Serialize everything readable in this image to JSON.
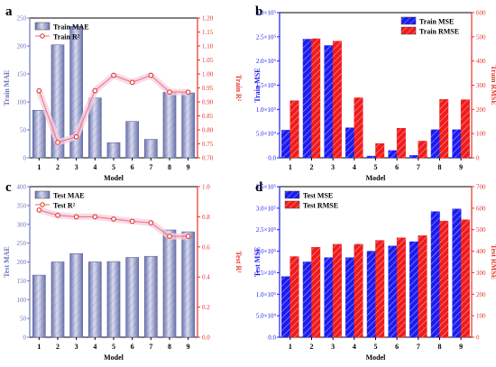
{
  "chart_data": [
    {
      "panel": "a",
      "type": "bar",
      "categories": [
        "1",
        "2",
        "3",
        "4",
        "5",
        "6",
        "7",
        "8",
        "9"
      ],
      "xlabel": "Model",
      "ylabel": "Train MAE",
      "ylim": [
        0,
        250
      ],
      "yticks": [
        "0",
        "50",
        "100",
        "150",
        "200",
        "250"
      ],
      "y2label": "Train R²",
      "y2lim": [
        0.7,
        1.2
      ],
      "y2ticks": [
        "0.70",
        "0.75",
        "0.80",
        "0.85",
        "0.90",
        "0.95",
        "1.00",
        "1.05",
        "1.10",
        "1.15",
        "1.20"
      ],
      "series": [
        {
          "name": "Train MAE",
          "axis": "left",
          "kind": "bar",
          "values": [
            85,
            202,
            235,
            107,
            27,
            65,
            33,
            117,
            116
          ]
        },
        {
          "name": "Train R²",
          "axis": "right",
          "kind": "line",
          "values": [
            0.94,
            0.755,
            0.775,
            0.94,
            0.995,
            0.97,
            0.995,
            0.935,
            0.935
          ]
        }
      ],
      "legend_position": "top-left",
      "grid": false
    },
    {
      "panel": "b",
      "type": "bar",
      "categories": [
        "1",
        "2",
        "3",
        "4",
        "5",
        "6",
        "7",
        "8",
        "9"
      ],
      "xlabel": "Model",
      "ylabel": "Train MSE",
      "ylim": [
        0,
        300000
      ],
      "yticks": [
        "0.0",
        "5.0×10⁴",
        "1.0×10⁵",
        "1.5×10⁵",
        "2.0×10⁵",
        "2.5×10⁵",
        "3.0×10⁵"
      ],
      "y2label": "Train RMSE",
      "y2lim": [
        0,
        600
      ],
      "y2ticks": [
        "0",
        "100",
        "200",
        "300",
        "400",
        "500",
        "600"
      ],
      "series": [
        {
          "name": "Train MSE",
          "axis": "left",
          "kind": "bar",
          "values": [
            57000,
            245000,
            232000,
            62000,
            3500,
            15000,
            4800,
            58000,
            58000
          ]
        },
        {
          "name": "Train RMSE",
          "axis": "right",
          "kind": "bar",
          "values": [
            236,
            492,
            482,
            248,
            59,
            122,
            69,
            241,
            240
          ]
        }
      ],
      "legend_position": "top-right",
      "grid": false
    },
    {
      "panel": "c",
      "type": "bar",
      "categories": [
        "1",
        "2",
        "3",
        "4",
        "5",
        "6",
        "7",
        "8",
        "9"
      ],
      "xlabel": "Model",
      "ylabel": "Test MAE",
      "ylim": [
        0,
        400
      ],
      "yticks": [
        "0",
        "50",
        "100",
        "150",
        "200",
        "250",
        "300",
        "350",
        "400"
      ],
      "y2label": "Test R²",
      "y2lim": [
        0.0,
        1.0
      ],
      "y2ticks": [
        "0.0",
        "0.2",
        "0.4",
        "0.6",
        "0.8",
        "1.0"
      ],
      "series": [
        {
          "name": "Test MAE",
          "axis": "left",
          "kind": "bar",
          "values": [
            165,
            200,
            222,
            200,
            201,
            212,
            215,
            285,
            280
          ]
        },
        {
          "name": "Test R²",
          "axis": "right",
          "kind": "line",
          "values": [
            0.845,
            0.81,
            0.8,
            0.8,
            0.785,
            0.77,
            0.76,
            0.67,
            0.67
          ]
        }
      ],
      "legend_position": "top-left",
      "grid": false
    },
    {
      "panel": "d",
      "type": "bar",
      "categories": [
        "1",
        "2",
        "3",
        "4",
        "5",
        "6",
        "7",
        "8",
        "9"
      ],
      "xlabel": "Model",
      "ylabel": "Test MSE",
      "ylim": [
        0,
        350000
      ],
      "yticks": [
        "0.0",
        "5.0×10⁴",
        "1.0×10⁵",
        "1.5×10⁵",
        "2.0×10⁵",
        "2.5×10⁵",
        "3.0×10⁵",
        "3.5×10⁵"
      ],
      "y2label": "Test RMSE",
      "y2lim": [
        0,
        700
      ],
      "y2ticks": [
        "0",
        "100",
        "200",
        "300",
        "400",
        "500",
        "600",
        "700"
      ],
      "series": [
        {
          "name": "Test MSE",
          "axis": "left",
          "kind": "bar",
          "values": [
            141000,
            175000,
            185000,
            185000,
            200000,
            212000,
            222000,
            292000,
            298000
          ]
        },
        {
          "name": "Test RMSE",
          "axis": "right",
          "kind": "bar",
          "values": [
            375,
            418,
            432,
            432,
            450,
            462,
            472,
            540,
            546
          ]
        }
      ],
      "legend_position": "top-left",
      "grid": false
    }
  ],
  "colors": {
    "steel_bar": "#8f97c9",
    "steel_left_axis": "#6a74b8",
    "red_axis": "#e8332a",
    "r2_line": "#f07a72",
    "r2_marker_edge": "#e02a20",
    "halo": "#f6cfe6",
    "blue_bar": "#1b1bf0",
    "red_bar": "#f01b1b",
    "hatch": "#ffffff"
  }
}
